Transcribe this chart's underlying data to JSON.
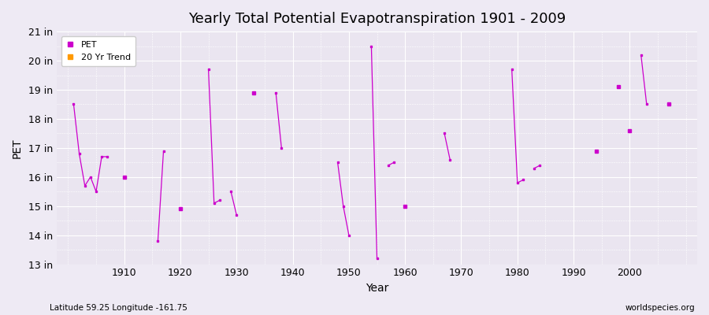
{
  "title": "Yearly Total Potential Evapotranspiration 1901 - 2009",
  "ylabel": "PET",
  "xlabel": "Year",
  "subtitle_left": "Latitude 59.25 Longitude -161.75",
  "subtitle_right": "worldspecies.org",
  "ylim": [
    13,
    21
  ],
  "xlim": [
    1898,
    2012
  ],
  "yticks": [
    13,
    14,
    15,
    16,
    17,
    18,
    19,
    20,
    21
  ],
  "ytick_labels": [
    "13 in",
    "14 in",
    "15 in",
    "16 in",
    "17 in",
    "18 in",
    "19 in",
    "20 in",
    "21 in"
  ],
  "xticks": [
    1910,
    1920,
    1930,
    1940,
    1950,
    1960,
    1970,
    1980,
    1990,
    2000
  ],
  "bg_color": "#eeeaf4",
  "plot_bg_color": "#eae5f0",
  "grid_color": "#ffffff",
  "line_color": "#cc00cc",
  "marker_color": "#cc00cc",
  "trend_color": "#ff9900",
  "pet_data": [
    [
      1901,
      18.5
    ],
    [
      1902,
      16.8
    ],
    [
      1903,
      15.7
    ],
    [
      1904,
      16.0
    ],
    [
      1905,
      15.5
    ],
    [
      1906,
      16.7
    ],
    [
      1907,
      16.7
    ],
    [
      1910,
      16.0
    ],
    [
      1916,
      13.8
    ],
    [
      1917,
      16.9
    ],
    [
      1920,
      14.9
    ],
    [
      1925,
      19.7
    ],
    [
      1926,
      15.1
    ],
    [
      1927,
      15.2
    ],
    [
      1929,
      15.5
    ],
    [
      1930,
      14.7
    ],
    [
      1933,
      18.9
    ],
    [
      1937,
      18.9
    ],
    [
      1938,
      17.0
    ],
    [
      1948,
      16.5
    ],
    [
      1949,
      15.0
    ],
    [
      1950,
      14.0
    ],
    [
      1954,
      20.5
    ],
    [
      1955,
      13.2
    ],
    [
      1957,
      16.4
    ],
    [
      1958,
      16.5
    ],
    [
      1960,
      15.0
    ],
    [
      1967,
      17.5
    ],
    [
      1968,
      16.6
    ],
    [
      1979,
      19.7
    ],
    [
      1980,
      15.8
    ],
    [
      1981,
      15.9
    ],
    [
      1983,
      16.3
    ],
    [
      1984,
      16.4
    ],
    [
      1994,
      16.9
    ],
    [
      1998,
      19.1
    ],
    [
      2000,
      17.6
    ],
    [
      2002,
      20.2
    ],
    [
      2003,
      18.5
    ],
    [
      2007,
      18.5
    ]
  ]
}
